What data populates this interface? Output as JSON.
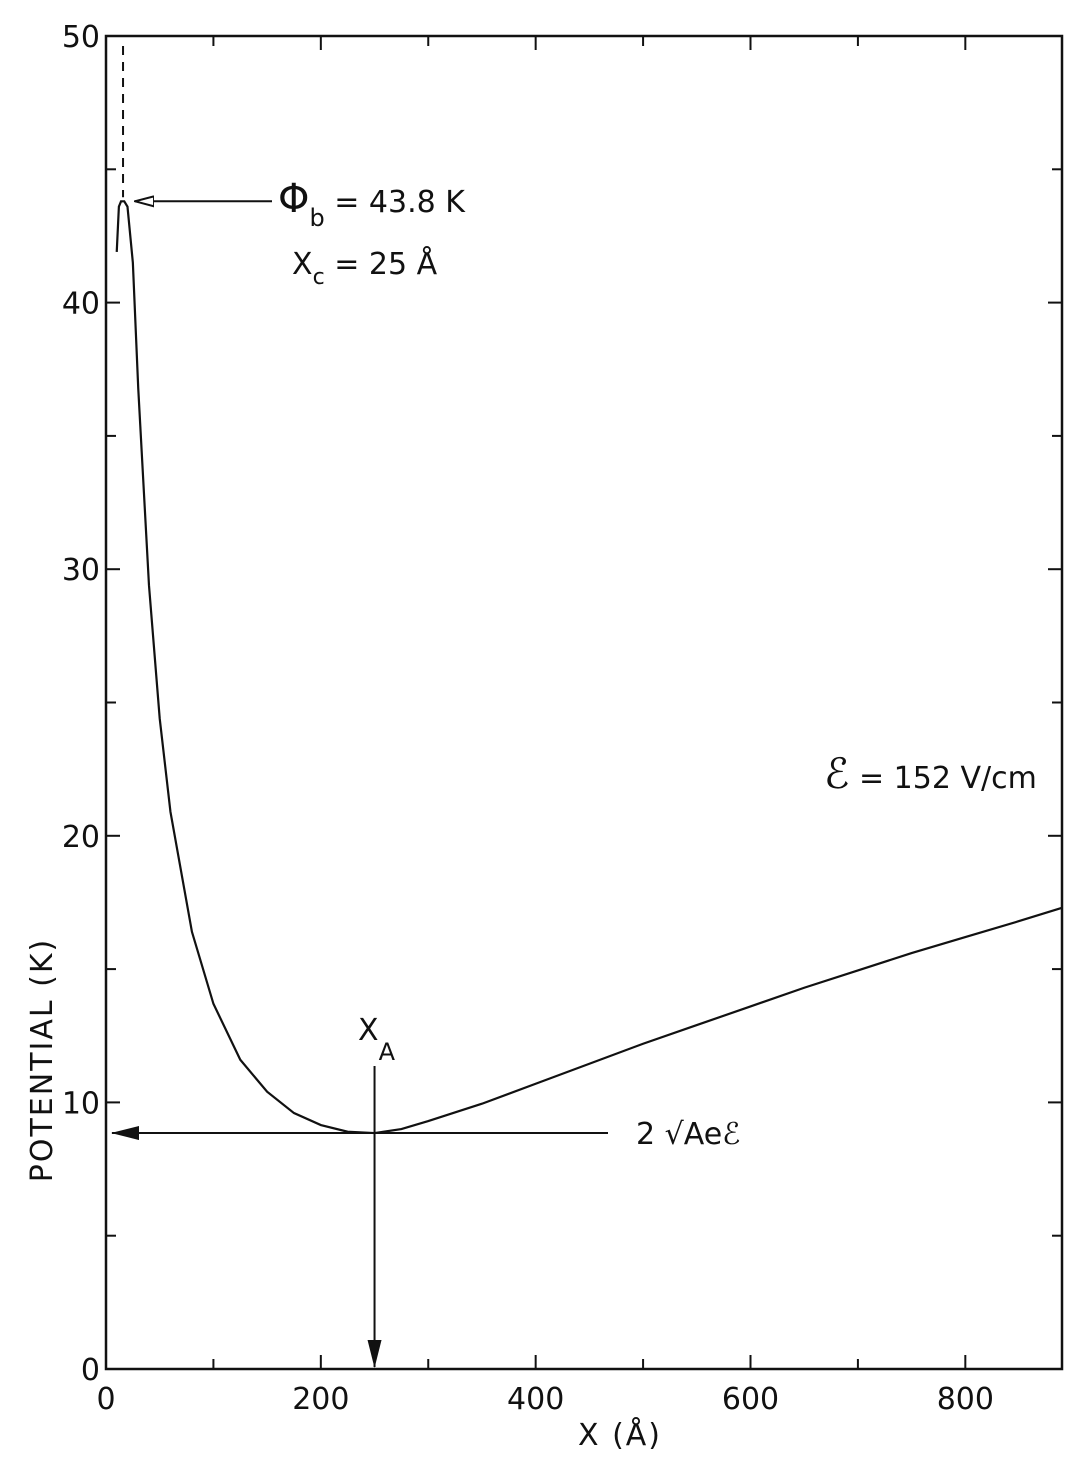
{
  "chart_data": {
    "type": "line",
    "title": "",
    "xlabel": "X (Å)",
    "ylabel": "POTENTIAL (K)",
    "xlim": [
      0,
      890
    ],
    "ylim": [
      0,
      50
    ],
    "x_ticks": [
      0,
      200,
      400,
      600,
      800
    ],
    "x_minor_ticks": [
      100,
      300,
      500,
      700
    ],
    "y_ticks": [
      0,
      10,
      20,
      30,
      40,
      50
    ],
    "y_minor_ticks": [
      5,
      15,
      25,
      35,
      45
    ],
    "grid": false,
    "legend": "none",
    "series": [
      {
        "x": [
          10,
          12,
          14,
          17,
          20,
          25,
          30,
          40,
          50,
          60,
          80,
          100,
          125,
          150,
          175,
          200,
          225,
          250,
          275,
          300,
          350,
          400,
          450,
          500,
          550,
          600,
          650,
          700,
          750,
          800,
          850,
          890
        ],
        "y": [
          41.9,
          43.6,
          43.8,
          43.8,
          43.6,
          41.5,
          36.8,
          29.4,
          24.4,
          20.9,
          16.4,
          13.7,
          11.6,
          10.4,
          9.6,
          9.15,
          8.9,
          8.85,
          9.0,
          9.3,
          9.95,
          10.7,
          11.45,
          12.2,
          12.9,
          13.6,
          14.3,
          14.95,
          15.6,
          16.2,
          16.8,
          17.3
        ]
      }
    ],
    "annotations": {
      "barrier": {
        "name": "Φ",
        "sub": "b",
        "rest": " = 43.8  K"
      },
      "xc": {
        "name": "X",
        "sub": "c",
        "rest": " = 25  Å"
      },
      "field": {
        "name": "ℰ",
        "rest": " = 152  V/cm"
      },
      "xa": {
        "name": "X",
        "sub": "A"
      },
      "minimum": {
        "text": "2 √Aeℰ"
      }
    },
    "marks": {
      "barrier_x": 14,
      "barrier_y": 43.8,
      "xa_x": 250,
      "xa_y": 8.85
    }
  }
}
